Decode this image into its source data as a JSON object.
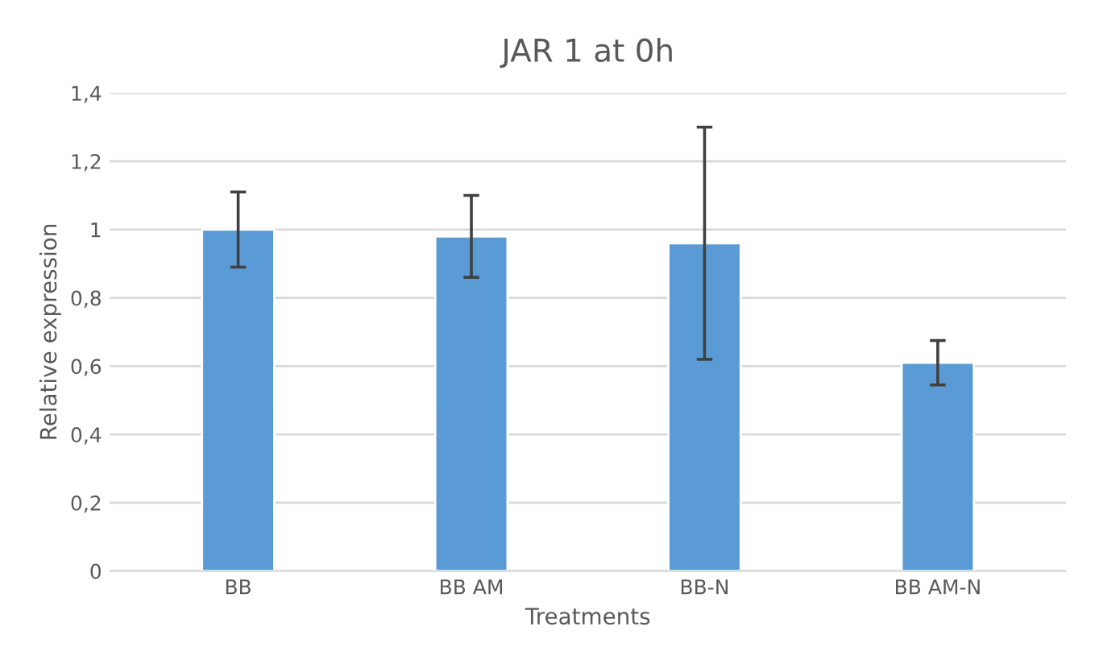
{
  "chart_data": {
    "type": "bar",
    "title": "JAR 1 at 0h",
    "xlabel": "Treatments",
    "ylabel": "Relative expression",
    "categories": [
      "BB",
      "BB AM",
      "BB-N",
      "BB AM-N"
    ],
    "values": [
      1.0,
      0.98,
      0.96,
      0.61
    ],
    "errors": [
      0.11,
      0.12,
      0.34,
      0.065
    ],
    "color": "#5b9bd5",
    "ylim": [
      0,
      1.4
    ],
    "yticks": [
      0,
      {
        "value": 0.2,
        "label": "0,2"
      },
      {
        "value": 0.4,
        "label": "0,4"
      },
      {
        "value": 0.6,
        "label": "0,6"
      },
      {
        "value": 0.8,
        "label": "0,8"
      },
      1,
      {
        "value": 1.2,
        "label": "1,2"
      },
      {
        "value": 1.4,
        "label": "1,4"
      }
    ],
    "grid": "y",
    "legend": false
  }
}
